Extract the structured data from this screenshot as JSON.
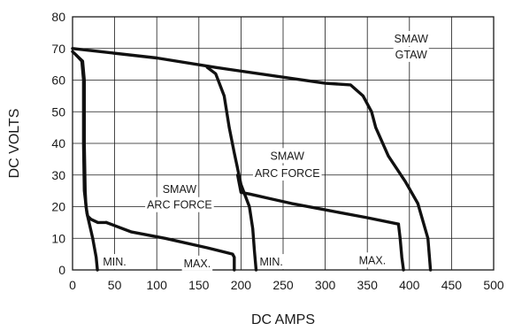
{
  "chart_data": {
    "type": "line",
    "title": "",
    "xlabel": "DC AMPS",
    "ylabel": "DC VOLTS",
    "xlim": [
      0,
      500
    ],
    "ylim": [
      0,
      80
    ],
    "x_ticks": [
      0,
      50,
      100,
      150,
      200,
      250,
      300,
      350,
      400,
      450,
      500
    ],
    "y_ticks": [
      0,
      10,
      20,
      30,
      40,
      50,
      60,
      70,
      80
    ],
    "x_tick_labels": [
      "0",
      "50",
      "100",
      "150",
      "200",
      "250",
      "300",
      "350",
      "400",
      "450",
      "500"
    ],
    "y_tick_labels": [
      "0",
      "10",
      "20",
      "30",
      "40",
      "50",
      "60",
      "70",
      "80"
    ],
    "grid": true,
    "series": [
      {
        "x": [
          0,
          12,
          14,
          14,
          15,
          16,
          18,
          22,
          30,
          35,
          40
        ],
        "y": [
          69,
          66,
          60,
          40,
          25,
          20,
          17,
          16,
          15,
          15,
          15
        ]
      },
      {
        "x": [
          4,
          11,
          13,
          13,
          14,
          17,
          24,
          28,
          29.5
        ],
        "y": [
          68,
          66,
          60,
          40,
          25,
          18,
          10,
          4,
          0
        ]
      },
      {
        "x": [
          40,
          70,
          110,
          160,
          190,
          192,
          192
        ],
        "y": [
          15,
          12,
          10,
          7,
          5,
          4,
          0
        ]
      },
      {
        "x": [
          0,
          100,
          170,
          300,
          330,
          345,
          355,
          360,
          375,
          395,
          410,
          422,
          425
        ],
        "y": [
          70,
          67,
          64,
          59,
          58.5,
          55,
          50,
          45,
          36,
          28,
          21,
          10,
          0
        ]
      },
      {
        "x": [
          160,
          170,
          180,
          186,
          192,
          200,
          210,
          214,
          216,
          218
        ],
        "y": [
          64,
          62,
          55,
          45,
          37,
          27,
          20,
          13,
          6,
          0
        ]
      },
      {
        "x": [
          196,
          200,
          210,
          220,
          230,
          240,
          260,
          300,
          350,
          387
        ],
        "y": [
          30,
          24.5,
          24,
          23.4,
          22.8,
          22.2,
          21,
          19,
          16.5,
          14.5
        ]
      },
      {
        "x": [
          387,
          389,
          391,
          393
        ],
        "y": [
          14.5,
          10,
          4,
          0
        ]
      }
    ],
    "annotations": [
      {
        "text": "SMAW",
        "x": 402,
        "y": 73
      },
      {
        "text": "GTAW",
        "x": 402,
        "y": 68
      },
      {
        "text": "SMAW",
        "x": 255,
        "y": 36
      },
      {
        "text": "ARC FORCE",
        "x": 255,
        "y": 30.5
      },
      {
        "text": "SMAW",
        "x": 127,
        "y": 25.5
      },
      {
        "text": "ARC FORCE",
        "x": 127,
        "y": 20.5
      },
      {
        "text": "MIN.",
        "x": 50,
        "y": 2.5
      },
      {
        "text": "MAX.",
        "x": 148,
        "y": 2
      },
      {
        "text": "MIN.",
        "x": 236,
        "y": 2.5
      },
      {
        "text": "MAX.",
        "x": 356,
        "y": 3
      }
    ]
  }
}
